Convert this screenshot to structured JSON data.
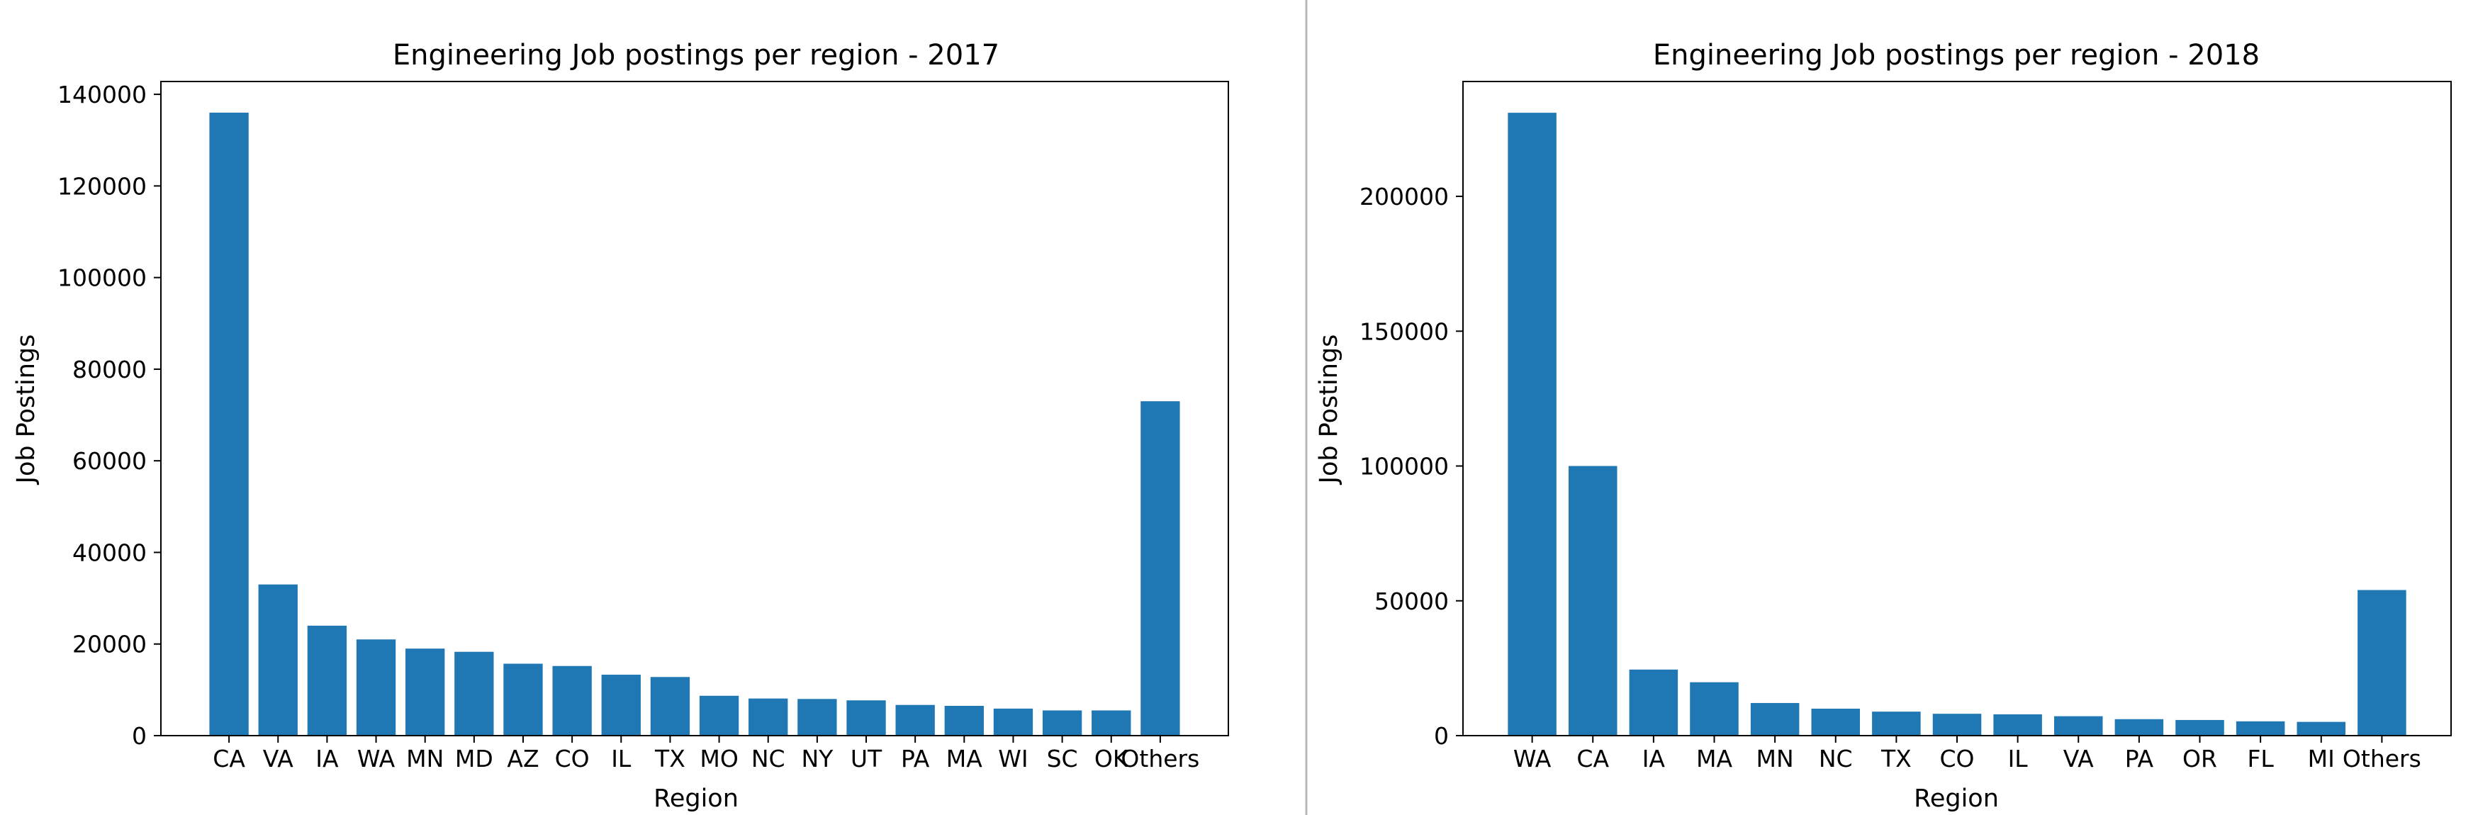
{
  "colors": {
    "bar": "#1f77b4",
    "divider": "#b8b8b8",
    "axis": "#000000"
  },
  "chart_data": [
    {
      "type": "bar",
      "title": "Engineering Job postings per region - 2017",
      "xlabel": "Region",
      "ylabel": "Job Postings",
      "categories": [
        "CA",
        "VA",
        "IA",
        "WA",
        "MN",
        "MD",
        "AZ",
        "CO",
        "IL",
        "TX",
        "MO",
        "NC",
        "NY",
        "UT",
        "PA",
        "MA",
        "WI",
        "SC",
        "OK",
        "Others"
      ],
      "values": [
        136000,
        33000,
        24000,
        21000,
        19000,
        18300,
        15700,
        15200,
        13300,
        12800,
        8700,
        8100,
        8000,
        7700,
        6700,
        6500,
        5900,
        5500,
        5500,
        73000
      ],
      "yticks": [
        0,
        20000,
        40000,
        60000,
        80000,
        100000,
        120000,
        140000
      ],
      "ylim": [
        0,
        142800
      ],
      "grid": false
    },
    {
      "type": "bar",
      "title": "Engineering Job postings per region - 2018",
      "xlabel": "Region",
      "ylabel": "Job Postings",
      "categories": [
        "WA",
        "CA",
        "IA",
        "MA",
        "MN",
        "NC",
        "TX",
        "CO",
        "IL",
        "VA",
        "PA",
        "OR",
        "FL",
        "MI",
        "Others"
      ],
      "values": [
        231000,
        100000,
        24500,
        19800,
        12100,
        10000,
        8900,
        8100,
        7900,
        7200,
        6100,
        5800,
        5300,
        5100,
        54000
      ],
      "yticks": [
        0,
        50000,
        100000,
        150000,
        200000
      ],
      "ylim": [
        0,
        242600
      ],
      "grid": false
    }
  ]
}
